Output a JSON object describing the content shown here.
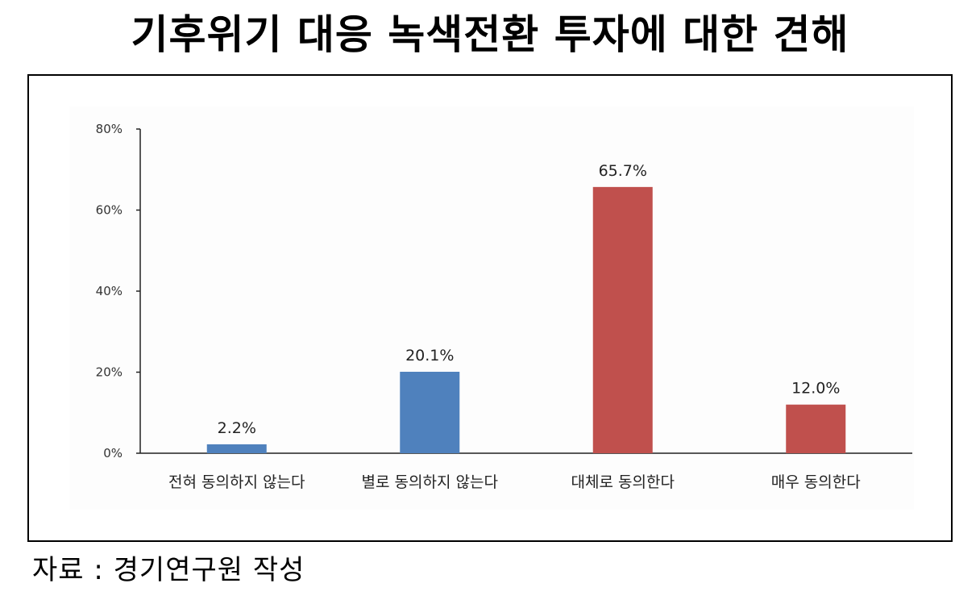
{
  "title": "기후위기 대응 녹색전환 투자에 대한 견해",
  "source": "자료 : 경기연구원 작성",
  "chart_data": {
    "type": "bar",
    "categories": [
      "전혀 동의하지 않는다",
      "별로 동의하지 않는다",
      "대체로 동의한다",
      "매우 동의한다"
    ],
    "values": [
      2.2,
      20.1,
      65.7,
      12.0
    ],
    "value_labels": [
      "2.2%",
      "20.1%",
      "65.7%",
      "12.0%"
    ],
    "bar_colors": [
      "#4f81bd",
      "#4f81bd",
      "#c0504d",
      "#c0504d"
    ],
    "ylim": [
      0,
      80
    ],
    "yticks": [
      0,
      20,
      40,
      60,
      80
    ],
    "ytick_labels": [
      "0%",
      "20%",
      "40%",
      "60%",
      "80%"
    ],
    "xlabel": "",
    "ylabel": "",
    "grid": false,
    "legend": "none"
  }
}
